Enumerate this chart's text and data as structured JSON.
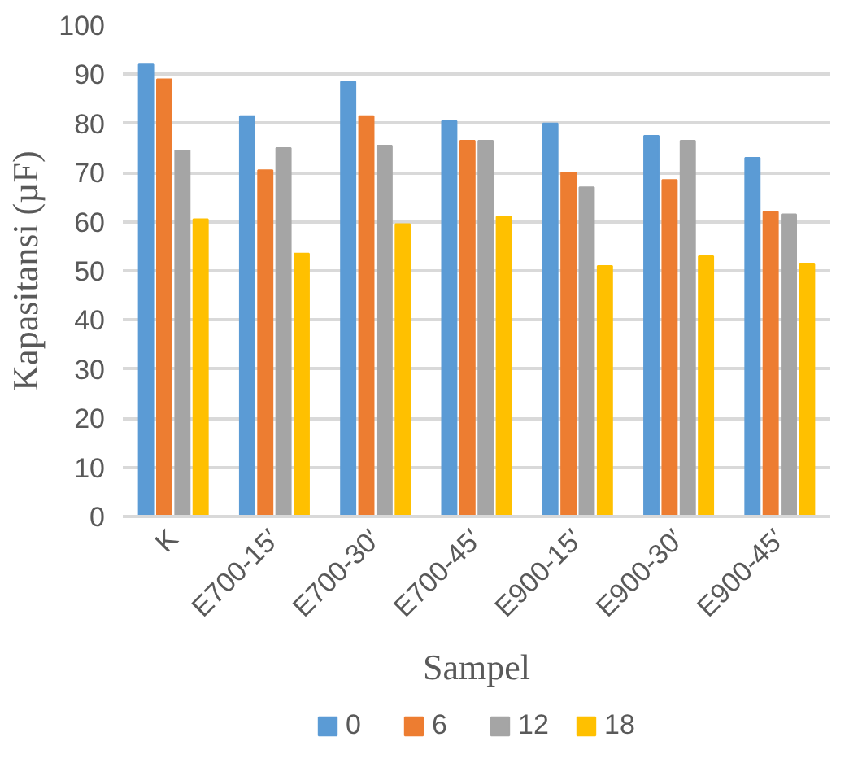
{
  "chart_data": {
    "type": "bar",
    "xlabel": "Sampel",
    "ylabel": "Kapasitansi (µF)",
    "categories": [
      "K",
      "E700-15′",
      "E700-30′",
      "E700-45′",
      "E900-15′",
      "E900-30′",
      "E900-45′"
    ],
    "series": [
      {
        "name": "0",
        "color": "#5b9bd5",
        "values": [
          92,
          81.5,
          88.5,
          80.5,
          80,
          77.5,
          73
        ]
      },
      {
        "name": "6",
        "color": "#ed7d31",
        "values": [
          89,
          70.5,
          81.5,
          76.5,
          70,
          68.5,
          62
        ]
      },
      {
        "name": "12",
        "color": "#a5a5a5",
        "values": [
          74.5,
          75,
          75.5,
          76.5,
          67,
          76.5,
          61.5
        ]
      },
      {
        "name": "18",
        "color": "#ffc000",
        "values": [
          60.5,
          53.5,
          59.5,
          61,
          51,
          53,
          51.5
        ]
      }
    ],
    "ylim": [
      0,
      100
    ],
    "yticks": [
      0,
      10,
      20,
      30,
      40,
      50,
      60,
      70,
      80,
      90,
      100
    ],
    "grid": "y",
    "legend": "bottom"
  }
}
